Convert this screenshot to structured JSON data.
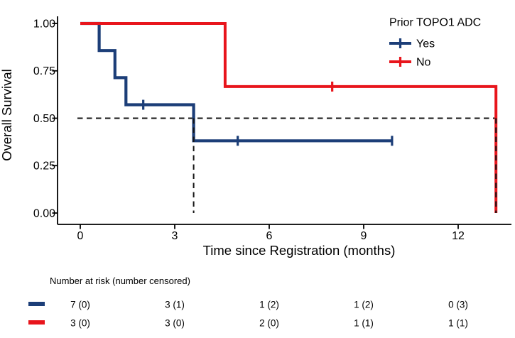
{
  "figure": {
    "legend": {
      "title": "Prior TOPO1 ADC",
      "items": [
        {
          "label": "Yes",
          "color": "#1c3e78"
        },
        {
          "label": "No",
          "color": "#e8151c"
        }
      ]
    },
    "risk_table": {
      "header": "Number at risk (number censored)",
      "rows": [
        {
          "group": "Yes",
          "color": "#1c3e78",
          "values": [
            "7 (0)",
            "3 (1)",
            "1 (2)",
            "1 (2)",
            "0 (3)"
          ]
        },
        {
          "group": "No",
          "color": "#e8151c",
          "values": [
            "3 (0)",
            "3 (0)",
            "2 (0)",
            "1 (1)",
            "1 (1)"
          ]
        }
      ]
    }
  },
  "chart_data": {
    "type": "line",
    "subtype": "kaplan-meier-step-curve",
    "title": "",
    "xlabel": "Time since Registration (months)",
    "ylabel": "Overall Survival",
    "xlim": [
      0,
      13.6
    ],
    "ylim": [
      0,
      1
    ],
    "x_ticks": [
      0,
      3,
      6,
      9,
      12
    ],
    "x_tick_labels": [
      "0",
      "3",
      "6",
      "9",
      "12"
    ],
    "y_ticks": [
      0,
      0.25,
      0.5,
      0.75,
      1
    ],
    "y_tick_labels": [
      "0.00",
      "0.25",
      "0.50",
      "0.75",
      "1.00"
    ],
    "grid": false,
    "legend_position": "top-right",
    "reference_line_y": 0.5,
    "median_survival_months": {
      "Yes": 3.6,
      "No": 13.2
    },
    "series": [
      {
        "name": "Yes",
        "color": "#1c3e78",
        "stroke_width": 4.2,
        "steps": [
          [
            0,
            1.0
          ],
          [
            0.6,
            1.0
          ],
          [
            0.6,
            0.857
          ],
          [
            1.1,
            0.857
          ],
          [
            1.1,
            0.714
          ],
          [
            1.45,
            0.714
          ],
          [
            1.45,
            0.571
          ],
          [
            3.6,
            0.571
          ],
          [
            3.6,
            0.381
          ],
          [
            9.9,
            0.381
          ]
        ],
        "censored": [
          [
            2.0,
            0.571
          ],
          [
            5.0,
            0.381
          ],
          [
            9.9,
            0.381
          ]
        ]
      },
      {
        "name": "No",
        "color": "#e8151c",
        "stroke_width": 4.0,
        "steps": [
          [
            0,
            1.0
          ],
          [
            4.6,
            1.0
          ],
          [
            4.6,
            0.667
          ],
          [
            13.2,
            0.667
          ],
          [
            13.2,
            0.0
          ]
        ],
        "censored": [
          [
            8.0,
            0.667
          ]
        ]
      }
    ]
  }
}
